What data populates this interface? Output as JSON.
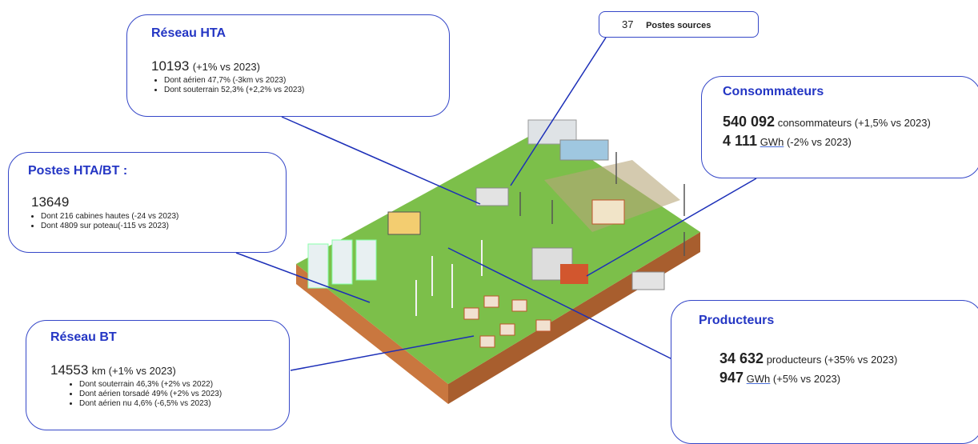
{
  "reseau_hta": {
    "title": "Réseau HTA",
    "value": "10193",
    "change": "(+1% vs 2023)",
    "details": [
      "Dont aérien 47,7% (-3km vs 2023)",
      "Dont souterrain 52,3% (+2,2% vs 2023)"
    ]
  },
  "postes_sources": {
    "value": "37",
    "label": "Postes sources"
  },
  "consommateurs": {
    "title": "Consommateurs",
    "lines": [
      {
        "value": "540 092",
        "text": "consommateurs (+1,5% vs 2023)"
      },
      {
        "value": "4 111",
        "unit": "GWh",
        "text": "(-2% vs 2023)"
      }
    ]
  },
  "postes_hta_bt": {
    "title": "Postes HTA/BT :",
    "value": "13649",
    "details": [
      "Dont 216 cabines hautes (-24 vs 2023)",
      "Dont 4809 sur poteau(-115 vs 2023)"
    ]
  },
  "reseau_bt": {
    "title": "Réseau BT",
    "value": "14553",
    "change": "km (+1% vs 2023)",
    "details": [
      "Dont souterrain 46,3% (+2% vs 2022)",
      "Dont aérien torsadé 49% (+2% vs 2023)",
      "Dont aérien nu 4,6% (-6,5% vs 2023)"
    ]
  },
  "producteurs": {
    "title": "Producteurs",
    "lines": [
      {
        "value": "34 632",
        "text": "producteurs (+35% vs 2023)"
      },
      {
        "value": "947",
        "unit": "GWh",
        "text": "(+5% vs 2023)"
      }
    ]
  }
}
